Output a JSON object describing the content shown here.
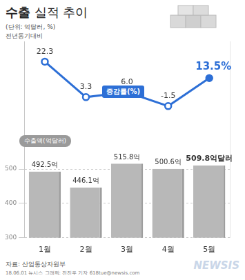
{
  "chart_data": {
    "type": "bar",
    "title": "수출 실적 추이",
    "subtitle": "(단위: 억달러, %)",
    "annotations": [
      "전년동기대비",
      "자료: 산업통상자원부",
      "18.06.01 뉴시스 그래픽: 전진우 기자 618tue@newsis.com",
      "NEWSIS"
    ],
    "categories": [
      "1월",
      "2월",
      "3월",
      "4월",
      "5월"
    ],
    "series": [
      {
        "name": "수출액(억달러)",
        "type": "bar",
        "color": "#b8b8b8",
        "values": [
          492.5,
          446.1,
          515.8,
          500.6,
          509.8
        ],
        "value_labels": [
          "492.5억",
          "446.1억",
          "515.8억",
          "500.6억",
          "509.8억달러"
        ]
      },
      {
        "name": "증감률(%)",
        "type": "line",
        "axis": "y2",
        "color": "#2d6fd6",
        "marker": "circle",
        "values": [
          22.3,
          3.3,
          6.0,
          -1.5,
          13.5
        ],
        "value_labels": [
          "22.3",
          "3.3",
          "6.0",
          "-1.5",
          "13.5%"
        ]
      }
    ],
    "ylim": [
      300,
      870
    ],
    "yticks": [
      300,
      400,
      500
    ],
    "y2lim": [
      -72,
      33
    ],
    "grid": true,
    "data_labels": true
  }
}
